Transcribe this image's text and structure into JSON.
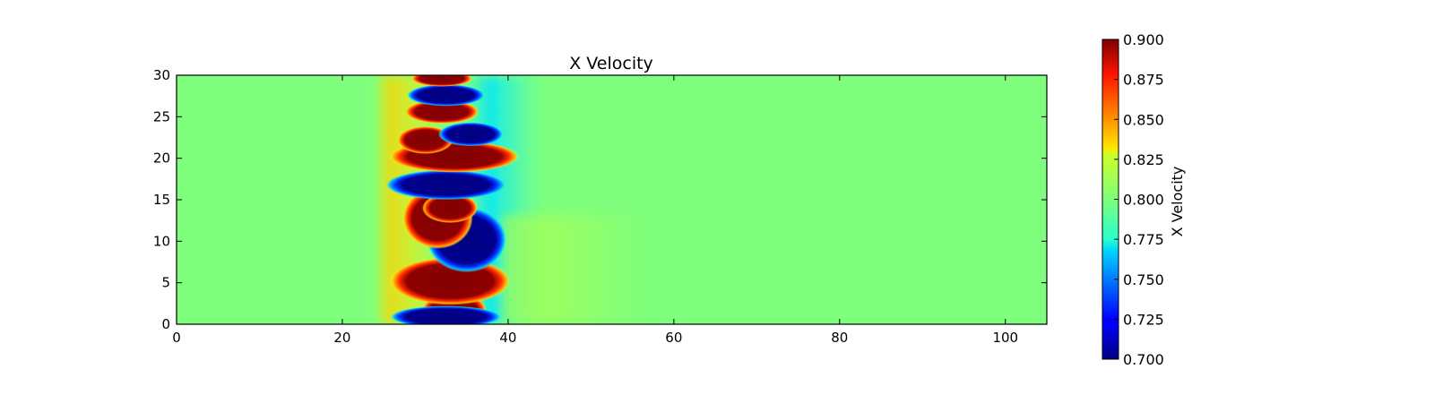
{
  "chart_data": {
    "type": "heatmap",
    "title": "X Velocity",
    "xlabel": "",
    "ylabel": "",
    "xlim": [
      0,
      105
    ],
    "ylim": [
      0,
      30
    ],
    "x_ticks": [
      0,
      20,
      40,
      60,
      80,
      100
    ],
    "y_ticks": [
      0,
      5,
      10,
      15,
      20,
      25,
      30
    ],
    "colormap": "jet",
    "background_value": 0.8,
    "colorbar": {
      "label": "X Velocity",
      "range": [
        0.7,
        0.9
      ],
      "ticks": [
        "0.700",
        "0.725",
        "0.750",
        "0.775",
        "0.800",
        "0.825",
        "0.850",
        "0.875",
        "0.900"
      ]
    },
    "features": [
      {
        "kind": "high",
        "value": 0.9,
        "x": 33.5,
        "y": 1.7,
        "rx": 3.5,
        "ry": 1.8
      },
      {
        "kind": "low",
        "value": 0.7,
        "x": 32.5,
        "y": 0.9,
        "rx": 6.0,
        "ry": 1.1
      },
      {
        "kind": "high",
        "value": 0.9,
        "x": 33.0,
        "y": 5.2,
        "rx": 6.5,
        "ry": 2.4
      },
      {
        "kind": "low",
        "value": 0.7,
        "x": 35.0,
        "y": 10.2,
        "rx": 4.3,
        "ry": 3.3
      },
      {
        "kind": "high",
        "value": 0.9,
        "x": 31.5,
        "y": 12.8,
        "rx": 3.8,
        "ry": 3.1
      },
      {
        "kind": "high",
        "value": 0.9,
        "x": 33.0,
        "y": 14.0,
        "rx": 3.0,
        "ry": 1.5
      },
      {
        "kind": "low",
        "value": 0.7,
        "x": 32.5,
        "y": 16.8,
        "rx": 6.5,
        "ry": 1.5
      },
      {
        "kind": "high",
        "value": 0.9,
        "x": 33.5,
        "y": 20.2,
        "rx": 7.0,
        "ry": 1.6
      },
      {
        "kind": "high",
        "value": 0.9,
        "x": 30.0,
        "y": 22.2,
        "rx": 3.0,
        "ry": 1.4
      },
      {
        "kind": "low",
        "value": 0.7,
        "x": 35.5,
        "y": 22.9,
        "rx": 3.5,
        "ry": 1.2
      },
      {
        "kind": "high",
        "value": 0.9,
        "x": 32.0,
        "y": 25.6,
        "rx": 4.0,
        "ry": 1.2
      },
      {
        "kind": "low",
        "value": 0.7,
        "x": 32.5,
        "y": 27.6,
        "rx": 4.2,
        "ry": 1.1
      },
      {
        "kind": "high",
        "value": 0.9,
        "x": 32.0,
        "y": 29.6,
        "rx": 3.3,
        "ry": 0.8
      }
    ]
  }
}
